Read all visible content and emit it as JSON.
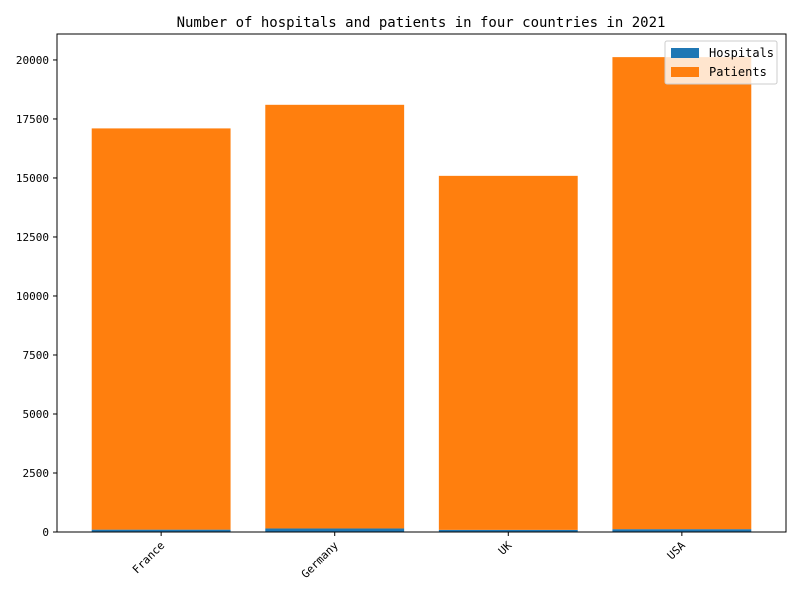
{
  "chart_data": {
    "type": "bar",
    "stacked": true,
    "title": "Number of hospitals and patients in four countries in 2021",
    "xlabel": "",
    "ylabel": "",
    "categories": [
      "France",
      "Germany",
      "UK",
      "USA"
    ],
    "series": [
      {
        "name": "Hospitals",
        "values": [
          100,
          150,
          90,
          120
        ],
        "color": "#1f77b4"
      },
      {
        "name": "Patients",
        "values": [
          17000,
          17950,
          15000,
          20000
        ],
        "color": "#ff7f0e"
      }
    ],
    "ylim": [
      0,
      21100
    ],
    "yticks": [
      0,
      2500,
      5000,
      7500,
      10000,
      12500,
      15000,
      17500,
      20000
    ],
    "grid": false,
    "legend_position": "top-right",
    "xtick_rotation": 45
  }
}
